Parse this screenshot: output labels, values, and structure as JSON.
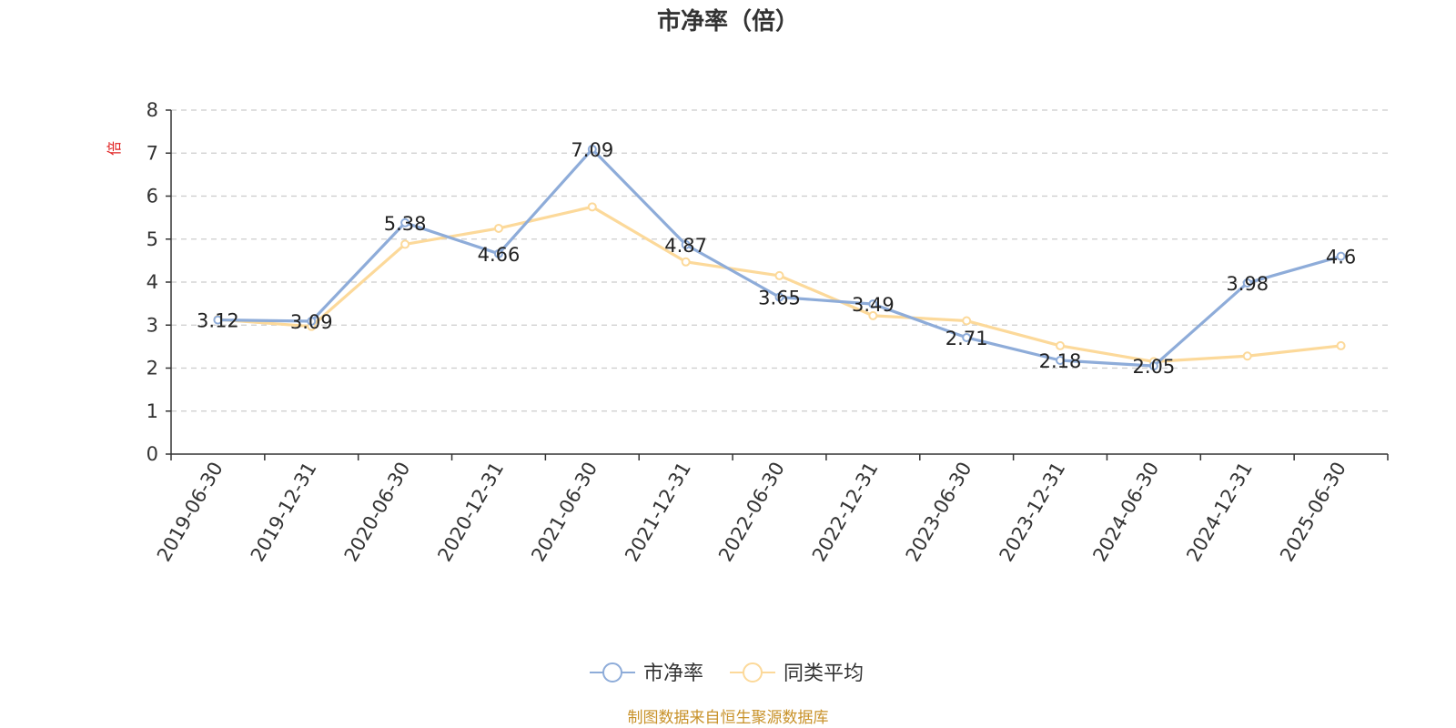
{
  "chart_data": {
    "type": "line",
    "title": "市净率（倍）",
    "ylabel": "倍",
    "xlabel": "",
    "ylim": [
      0,
      8
    ],
    "yticks": [
      0,
      1,
      2,
      3,
      4,
      5,
      6,
      7,
      8
    ],
    "grid": true,
    "legend_position": "bottom-center",
    "categories": [
      "2019-06-30",
      "2019-12-31",
      "2020-06-30",
      "2020-12-31",
      "2021-06-30",
      "2021-12-31",
      "2022-06-30",
      "2022-12-31",
      "2023-06-30",
      "2023-12-31",
      "2024-06-30",
      "2024-12-31",
      "2025-06-30"
    ],
    "series": [
      {
        "name": "市净率",
        "color": "#8eacd9",
        "values": [
          3.12,
          3.09,
          5.38,
          4.66,
          7.09,
          4.87,
          3.65,
          3.49,
          2.71,
          2.18,
          2.05,
          3.98,
          4.6
        ],
        "labels": [
          "3.12",
          "3.09",
          "5.38",
          "4.66",
          "7.09",
          "4.87",
          "3.65",
          "3.49",
          "2.71",
          "2.18",
          "2.05",
          "3.98",
          "4.6"
        ]
      },
      {
        "name": "同类平均",
        "color": "#fcd99a",
        "values": [
          3.13,
          2.97,
          4.88,
          5.25,
          5.75,
          4.47,
          4.15,
          3.22,
          3.1,
          2.52,
          2.15,
          2.28,
          2.52
        ]
      }
    ],
    "source": "制图数据来自恒生聚源数据库"
  }
}
